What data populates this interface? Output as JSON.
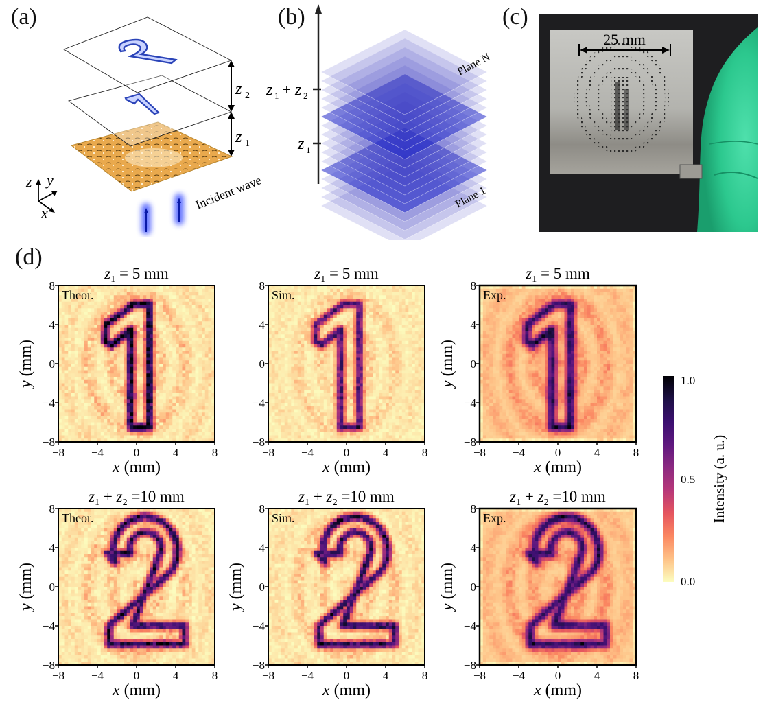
{
  "panels": {
    "a": {
      "label": "(a)",
      "z1": "z",
      "z1_sub": "1",
      "z2": "z",
      "z2_sub": "2",
      "axis_z": "z",
      "axis_y": "y",
      "axis_x": "x",
      "incident": "Incident wave",
      "digit_top": "2",
      "digit_mid": "1"
    },
    "b": {
      "label": "(b)",
      "tick_upper": "z",
      "tick_upper_sub1": "1",
      "tick_upper_plus": " + ",
      "tick_upper_z2": "z",
      "tick_upper_sub2": "2",
      "tick_lower": "z",
      "tick_lower_sub": "1",
      "plane_top": "Plane N",
      "plane_bottom": "Plane 1"
    },
    "c": {
      "label": "(c)",
      "scale": "25 mm"
    },
    "d": {
      "label": "(d)"
    }
  },
  "colors": {
    "cmap": [
      "#fcfdbf",
      "#fec287",
      "#fb8761",
      "#e5555f",
      "#b73779",
      "#8c2981",
      "#5f187f",
      "#3b0f70",
      "#1c1044",
      "#000004"
    ],
    "hologram": "#e9a94d",
    "plane_blue": "#3036c8",
    "glove": "#2fd39a"
  },
  "chart_data": [
    {
      "type": "heatmap",
      "id": "theor-1",
      "tag": "Theor.",
      "title_z": "z",
      "title_sub": "1",
      "title_rest": " = 5 mm",
      "digit": "1",
      "noise": 0.32,
      "sharp": 1.0,
      "blur": 0,
      "xlabel_var": "x",
      "xlabel_unit": " (mm)",
      "ylabel_var": "y",
      "ylabel_unit": " (mm)",
      "xlim": [
        -8,
        8
      ],
      "ylim": [
        -8,
        8
      ],
      "xticks": [
        "−8",
        "−4",
        "0",
        "4",
        "8"
      ],
      "yticks": [
        "8",
        "4",
        "0",
        "−4",
        "−8"
      ]
    },
    {
      "type": "heatmap",
      "id": "sim-1",
      "tag": "Sim.",
      "title_z": "z",
      "title_sub": "1",
      "title_rest": " = 5 mm",
      "digit": "1",
      "noise": 0.22,
      "sharp": 0.75,
      "blur": 0,
      "xlabel_var": "x",
      "xlabel_unit": " (mm)",
      "ylabel_var": "",
      "ylabel_unit": "",
      "xlim": [
        -8,
        8
      ],
      "ylim": [
        -8,
        8
      ],
      "xticks": [
        "−8",
        "−4",
        "0",
        "4",
        "8"
      ],
      "yticks": [
        "8",
        "4",
        "0",
        "−4",
        "−8"
      ]
    },
    {
      "type": "heatmap",
      "id": "exp-1",
      "tag": "Exp.",
      "title_z": "z",
      "title_sub": "1",
      "title_rest": " = 5 mm",
      "digit": "1",
      "noise": 0.42,
      "sharp": 0.9,
      "blur": 1,
      "xlabel_var": "x",
      "xlabel_unit": " (mm)",
      "ylabel_var": "y",
      "ylabel_unit": " (mm)",
      "xlim": [
        -8,
        8
      ],
      "ylim": [
        -8,
        8
      ],
      "xticks": [
        "−8",
        "−4",
        "0",
        "4",
        "8"
      ],
      "yticks": [
        "8",
        "4",
        "0",
        "−4",
        "−8"
      ]
    },
    {
      "type": "heatmap",
      "id": "theor-2",
      "tag": "Theor.",
      "title_z": "z",
      "title_sub": "1",
      "title_rest": " + ",
      "title_z2": "z",
      "title_sub2": "2",
      "title_rest2": " =10 mm",
      "digit": "2",
      "noise": 0.3,
      "sharp": 0.85,
      "blur": 0,
      "xlabel_var": "x",
      "xlabel_unit": " (mm)",
      "ylabel_var": "y",
      "ylabel_unit": " (mm)",
      "xlim": [
        -8,
        8
      ],
      "ylim": [
        -8,
        8
      ],
      "xticks": [
        "−8",
        "−4",
        "0",
        "4",
        "8"
      ],
      "yticks": [
        "8",
        "4",
        "0",
        "−4",
        "−8"
      ]
    },
    {
      "type": "heatmap",
      "id": "sim-2",
      "tag": "Sim.",
      "title_z": "z",
      "title_sub": "1",
      "title_rest": " + ",
      "title_z2": "z",
      "title_sub2": "2",
      "title_rest2": " =10 mm",
      "digit": "2",
      "noise": 0.28,
      "sharp": 0.85,
      "blur": 0,
      "xlabel_var": "x",
      "xlabel_unit": " (mm)",
      "ylabel_var": "y",
      "ylabel_unit": " (mm)",
      "xlim": [
        -8,
        8
      ],
      "ylim": [
        -8,
        8
      ],
      "xticks": [
        "−8",
        "−4",
        "0",
        "4",
        "8"
      ],
      "yticks": [
        "8",
        "4",
        "0",
        "−4",
        "−8"
      ]
    },
    {
      "type": "heatmap",
      "id": "exp-2",
      "tag": "Exp.",
      "title_z": "z",
      "title_sub": "1",
      "title_rest": " + ",
      "title_z2": "z",
      "title_sub2": "2",
      "title_rest2": " =10 mm",
      "digit": "2",
      "noise": 0.42,
      "sharp": 0.85,
      "blur": 1,
      "xlabel_var": "x",
      "xlabel_unit": " (mm)",
      "ylabel_var": "y",
      "ylabel_unit": " (mm)",
      "xlim": [
        -8,
        8
      ],
      "ylim": [
        -8,
        8
      ],
      "xticks": [
        "−8",
        "−4",
        "0",
        "4",
        "8"
      ],
      "yticks": [
        "8",
        "4",
        "0",
        "−4",
        "−8"
      ]
    }
  ],
  "colorbar": {
    "label": "Intensity (a. u.)",
    "range": [
      0.0,
      1.0
    ],
    "ticks": [
      "1.0",
      "0.5",
      "0.0"
    ]
  }
}
